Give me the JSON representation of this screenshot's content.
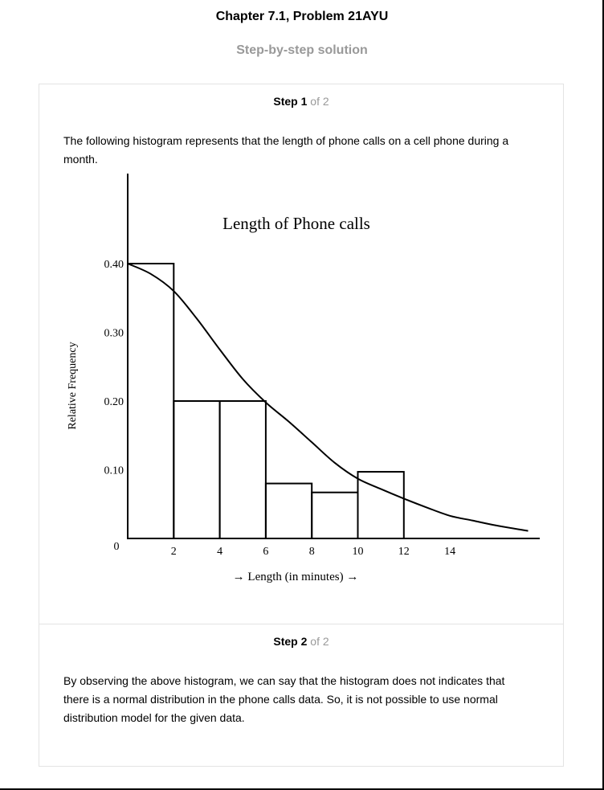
{
  "header": {
    "title": "Chapter 7.1, Problem 21AYU",
    "subtitle": "Step-by-step solution"
  },
  "steps": [
    {
      "label": "Step",
      "number": "1",
      "of_text": "of 2",
      "text": "The following histogram represents that the length of phone calls on a cell phone during a month."
    },
    {
      "label": "Step",
      "number": "2",
      "of_text": "of 2",
      "text": "By observing the above histogram, we can say that the histogram does not indicates that there is a normal distribution in the phone calls data. So, it is not possible to use normal distribution model for the given data."
    }
  ],
  "chart_data": {
    "type": "bar",
    "title": "Length of Phone calls",
    "xlabel": "→ Length (in minutes) →",
    "ylabel": "Relative Frequency",
    "x_ticks": [
      "2",
      "4",
      "6",
      "8",
      "10",
      "12",
      "14"
    ],
    "y_ticks": [
      "0.10",
      "0.20",
      "0.30",
      "0.40"
    ],
    "origin_label": "0",
    "xlim": [
      0,
      18
    ],
    "ylim": [
      0,
      0.5
    ],
    "bins": [
      {
        "x0": 0,
        "x1": 2,
        "value": 0.4
      },
      {
        "x0": 2,
        "x1": 4,
        "value": 0.2
      },
      {
        "x0": 4,
        "x1": 6,
        "value": 0.2
      },
      {
        "x0": 6,
        "x1": 8,
        "value": 0.08
      },
      {
        "x0": 8,
        "x1": 10,
        "value": 0.067
      },
      {
        "x0": 10,
        "x1": 12,
        "value": 0.097
      }
    ],
    "curve": {
      "x": [
        0,
        1,
        2,
        3,
        4,
        5,
        6,
        7,
        8,
        9,
        10,
        11,
        12,
        13,
        14,
        15,
        16,
        17.4
      ],
      "y": [
        0.4,
        0.385,
        0.36,
        0.32,
        0.275,
        0.232,
        0.198,
        0.17,
        0.14,
        0.11,
        0.087,
        0.072,
        0.058,
        0.045,
        0.033,
        0.026,
        0.019,
        0.011
      ]
    },
    "grid": false,
    "legend": "none"
  }
}
